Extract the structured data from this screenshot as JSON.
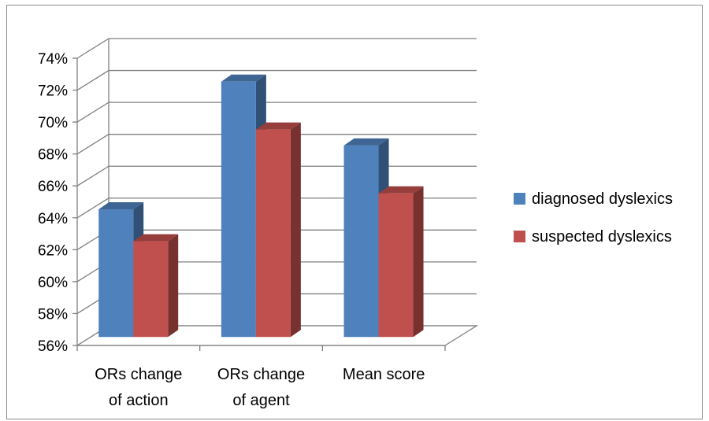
{
  "chart_data": {
    "type": "bar",
    "categories": [
      "ORs change of action",
      "ORs change of agent",
      "Mean score"
    ],
    "category_lines": [
      [
        "ORs change",
        "of action"
      ],
      [
        "ORs change",
        "of agent"
      ],
      [
        "Mean score"
      ]
    ],
    "series": [
      {
        "name": "diagnosed dyslexics",
        "values": [
          0.64,
          0.72,
          0.68
        ],
        "color": "#4f81bd"
      },
      {
        "name": "suspected dyslexics",
        "values": [
          0.62,
          0.69,
          0.65
        ],
        "color": "#c0504d"
      }
    ],
    "ylim": [
      0.56,
      0.74
    ],
    "yticks": [
      "56%",
      "58%",
      "60%",
      "62%",
      "64%",
      "66%",
      "68%",
      "70%",
      "72%",
      "74%"
    ],
    "grid": true,
    "legend": "right",
    "style": "3d-clustered-column"
  }
}
